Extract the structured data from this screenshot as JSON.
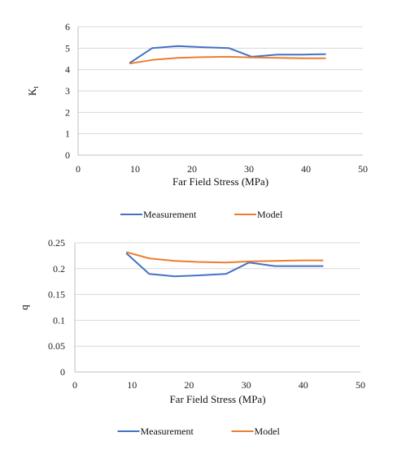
{
  "chart_data": [
    {
      "type": "line",
      "title": "",
      "xlabel": "Far Field Stress (MPa)",
      "ylabel": "K",
      "ylabel_sub": "t",
      "xlim": [
        0,
        50
      ],
      "ylim": [
        0,
        6
      ],
      "xticks": [
        0,
        10,
        20,
        30,
        40,
        50
      ],
      "yticks": [
        0,
        1,
        2,
        3,
        4,
        5,
        6
      ],
      "xtick_labels": [
        "0",
        "10",
        "20",
        "30",
        "40",
        "50"
      ],
      "ytick_labels": [
        "0",
        "1",
        "2",
        "3",
        "4",
        "5",
        "6"
      ],
      "grid": true,
      "legend_position": "bottom",
      "series": [
        {
          "name": "Measurement",
          "color": "#4472C4",
          "x": [
            9,
            13,
            17.5,
            21.5,
            26.5,
            30.5,
            35,
            39.5,
            43.5
          ],
          "y": [
            4.3,
            5.0,
            5.1,
            5.05,
            5.0,
            4.6,
            4.7,
            4.7,
            4.72
          ]
        },
        {
          "name": "Model",
          "color": "#ED7D31",
          "x": [
            9,
            13,
            17.5,
            21.5,
            26.5,
            30.5,
            35,
            39.5,
            43.5
          ],
          "y": [
            4.28,
            4.45,
            4.55,
            4.58,
            4.6,
            4.57,
            4.55,
            4.53,
            4.53
          ]
        }
      ]
    },
    {
      "type": "line",
      "title": "",
      "xlabel": "Far Field Stress (MPa)",
      "ylabel": "q",
      "ylabel_sub": "",
      "xlim": [
        0,
        50
      ],
      "ylim": [
        0,
        0.25
      ],
      "xticks": [
        0,
        10,
        20,
        30,
        40,
        50
      ],
      "yticks": [
        0,
        0.05,
        0.1,
        0.15,
        0.2,
        0.25
      ],
      "xtick_labels": [
        "0",
        "10",
        "20",
        "30",
        "40",
        "50"
      ],
      "ytick_labels": [
        "0",
        "0.05",
        "0.1",
        "0.15",
        "0.2",
        "0.25"
      ],
      "grid": true,
      "legend_position": "bottom",
      "series": [
        {
          "name": "Measurement",
          "color": "#4472C4",
          "x": [
            9,
            13,
            17.5,
            21.5,
            26.5,
            30.5,
            35,
            39.5,
            43.5
          ],
          "y": [
            0.23,
            0.19,
            0.185,
            0.187,
            0.19,
            0.212,
            0.205,
            0.205,
            0.205
          ]
        },
        {
          "name": "Model",
          "color": "#ED7D31",
          "x": [
            9,
            13,
            17.5,
            21.5,
            26.5,
            30.5,
            35,
            39.5,
            43.5
          ],
          "y": [
            0.232,
            0.22,
            0.215,
            0.213,
            0.212,
            0.214,
            0.215,
            0.216,
            0.216
          ]
        }
      ]
    }
  ]
}
